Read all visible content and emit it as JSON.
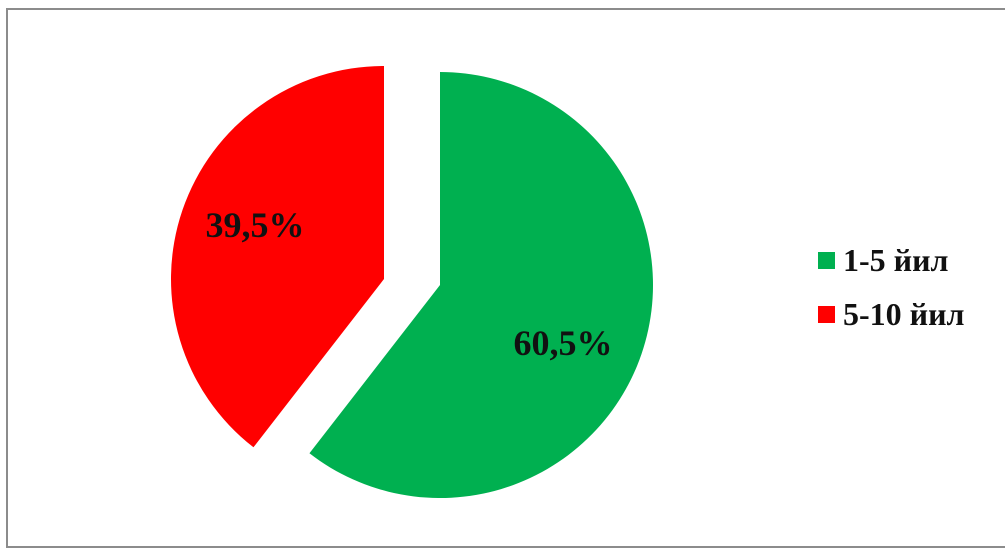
{
  "chart_data": {
    "type": "pie",
    "categories": [
      "1-5 йил",
      "5-10 йил"
    ],
    "values": [
      60.5,
      39.5
    ],
    "data_labels": [
      "60,5%",
      "39,5%"
    ],
    "colors": [
      "#00b050",
      "#ff0000"
    ],
    "exploded": true,
    "legend_position": "right"
  }
}
